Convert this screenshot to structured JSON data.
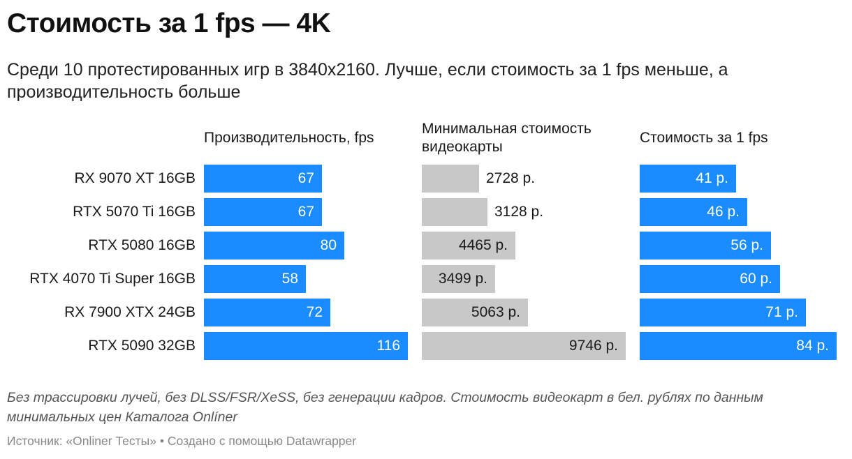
{
  "title": "Стоимость за 1 fps — 4K",
  "subtitle": "Среди 10 протестированных игр в 3840x2160. Лучше, если стоимость за 1 fps меньше, а производительность больше",
  "note": "Без трассировки лучей, без DLSS/FSR/XeSS, без генерации кадров. Стоимость видеокарт в бел. рублях по данным минимальных цен Каталога Onlíner",
  "source": "Источник: «Onliner Тесты» • Создано с помощью Datawrapper",
  "colors": {
    "performance": "#1a8cff",
    "price": "#c8c8c8",
    "cost_per_fps": "#1a8cff"
  },
  "chart_data": {
    "type": "bar",
    "orientation": "horizontal",
    "categories": [
      "RX 9070 XT 16GB",
      "RTX 5070 Ti 16GB",
      "RTX 5080 16GB",
      "RTX 4070 Ti Super 16GB",
      "RX 7900 XTX 24GB",
      "RTX 5090 32GB"
    ],
    "series": [
      {
        "name": "Производительность, fps",
        "values": [
          67,
          67,
          80,
          58,
          72,
          116
        ],
        "labels": [
          "67",
          "67",
          "80",
          "58",
          "72",
          "116"
        ]
      },
      {
        "name": "Минимальная стоимость видеокарты",
        "values": [
          2728,
          3128,
          4465,
          3499,
          5063,
          9746
        ],
        "labels": [
          "2728 р.",
          "3128 р.",
          "4465 р.",
          "3499 р.",
          "5063 р.",
          "9746 р."
        ]
      },
      {
        "name": "Стоимость за 1 fps",
        "values": [
          41,
          46,
          56,
          60,
          71,
          84
        ],
        "labels": [
          "41 р.",
          "46 р.",
          "56 р.",
          "60 р.",
          "71 р.",
          "84 р."
        ]
      }
    ],
    "xlim": [
      [
        0,
        116
      ],
      [
        0,
        9746
      ],
      [
        0,
        84
      ]
    ],
    "grid": false,
    "legend": "none"
  }
}
